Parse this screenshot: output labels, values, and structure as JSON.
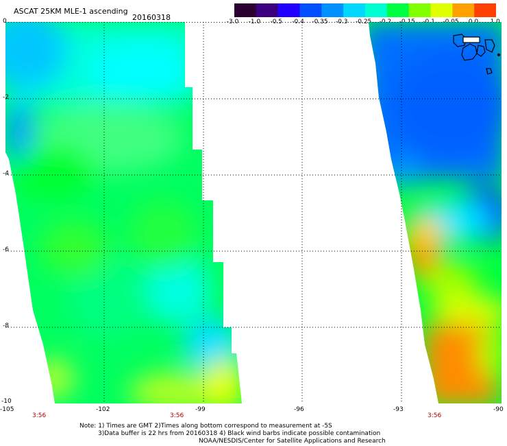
{
  "header": {
    "title": "ASCAT 25KM MLE-1 ascending",
    "date": "20160318"
  },
  "colorbar": {
    "labels": [
      "-3.0",
      "-1.0",
      "-0.5",
      "-0.4",
      "-0.35",
      "-0.3",
      "-0.25",
      "-0.2",
      "-0.15",
      "-0.1",
      "-0.05",
      "0.0",
      "1.0"
    ],
    "colors": [
      "#2b0030",
      "#3a0080",
      "#2000ff",
      "#0050ff",
      "#0090ff",
      "#00d8ff",
      "#00ffd0",
      "#00ff40",
      "#80ff00",
      "#e0ff00",
      "#ffa000",
      "#ff4000"
    ]
  },
  "axes": {
    "x_ticks": [
      "-105",
      "-102",
      "-99",
      "-96",
      "-93",
      "-90"
    ],
    "y_ticks": [
      "0",
      "-2",
      "-4",
      "-6",
      "-8",
      "-10"
    ],
    "time_labels": [
      "3:56",
      "3:56",
      "3:56"
    ]
  },
  "notes": {
    "line1": "Note: 1) Times are GMT 2)Times along bottom correspond to measurement at -5S",
    "line2": "3)Data buffer is 22 hrs from 20160318 4) Black wind barbs indicate possible contamination",
    "line3": "NOAA/NESDIS/Center for Satellite Applications and Research"
  }
}
